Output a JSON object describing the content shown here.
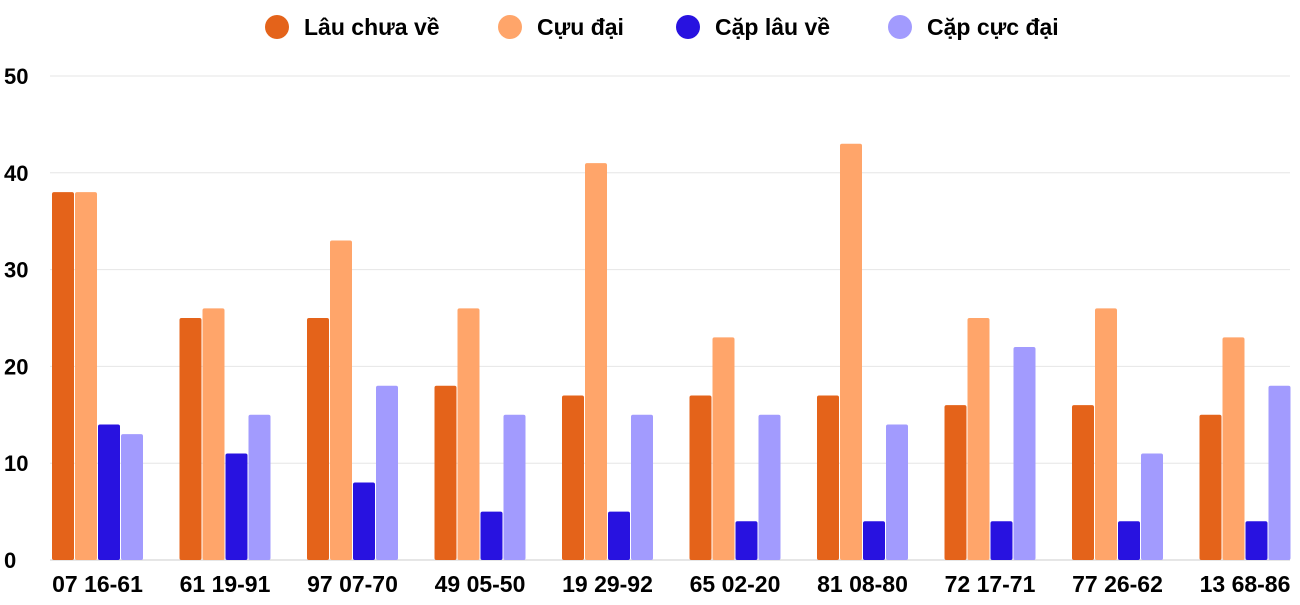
{
  "chart_data": {
    "type": "bar",
    "categories": [
      "07 16-61",
      "61 19-91",
      "97 07-70",
      "49 05-50",
      "19 29-92",
      "65 02-20",
      "81 08-80",
      "72 17-71",
      "77 26-62",
      "13 68-86"
    ],
    "series": [
      {
        "name": "Lâu chưa về",
        "color": "#e4631a",
        "values": [
          38,
          25,
          25,
          18,
          17,
          17,
          17,
          16,
          16,
          15
        ]
      },
      {
        "name": "Cựu đại",
        "color": "#ffa56a",
        "values": [
          38,
          26,
          33,
          26,
          41,
          23,
          43,
          25,
          26,
          23
        ]
      },
      {
        "name": "Cặp lâu về",
        "color": "#2812e0",
        "values": [
          14,
          11,
          8,
          5,
          5,
          4,
          4,
          4,
          4,
          4
        ]
      },
      {
        "name": "Cặp cực đại",
        "color": "#a29bfe",
        "values": [
          13,
          15,
          18,
          15,
          15,
          15,
          14,
          22,
          11,
          18
        ]
      }
    ],
    "ylim": [
      0,
      50
    ],
    "yticks": [
      "0",
      "10",
      "20",
      "30",
      "40",
      "50"
    ],
    "grid": true,
    "legend": "top"
  }
}
